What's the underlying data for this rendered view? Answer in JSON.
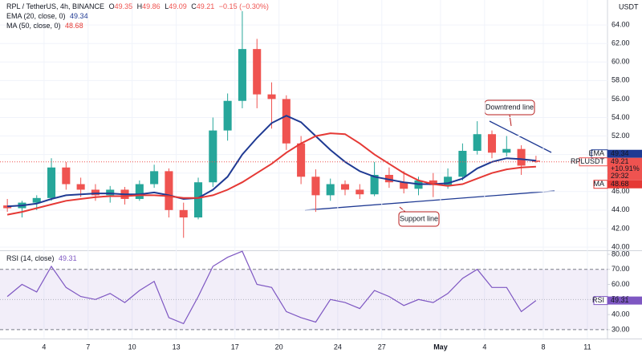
{
  "chart_data": {
    "type": "candlestick",
    "title": "RPL / TetherUS, 4h, BINANCE",
    "ohlc_labels": [
      "O",
      "H",
      "L",
      "C"
    ],
    "change": "−0.15 (−0.30%)",
    "currency": "USDT",
    "up_color": "#26a69a",
    "down_color": "#ef5350",
    "x": [
      0.5,
      1.5,
      2.5,
      3.5,
      4.5,
      5.5,
      6.5,
      7.5,
      8.5,
      9.5,
      10.5,
      11.5,
      12.5,
      13.5,
      14.5,
      15.5,
      16.5,
      17.5,
      18.5,
      19.5,
      20.5,
      21.5,
      22.5,
      23.5,
      24.5,
      25.5,
      26.5,
      27.5,
      28.5,
      29.5,
      30.5,
      31.5,
      32.5,
      33.5,
      34.5,
      35.5,
      36.5
    ],
    "open": [
      44.5,
      44.2,
      44.8,
      45.3,
      48.6,
      46.8,
      46.2,
      45.6,
      46.2,
      45.2,
      46.8,
      48.2,
      44,
      43.2,
      47,
      52.6,
      55.8,
      61.4,
      56.5,
      56,
      51.2,
      47.6,
      45.6,
      46.8,
      46.2,
      45.7,
      47.8,
      47,
      46.3,
      47.2,
      46.7,
      47.6,
      50.4,
      52.2,
      50.2,
      50.6,
      49.35
    ],
    "high": [
      45.2,
      45,
      45.6,
      49.6,
      49.2,
      47.5,
      46.8,
      46.6,
      46.5,
      47.2,
      48.9,
      48.5,
      44.8,
      47.5,
      54,
      56.6,
      65.5,
      62.5,
      57.8,
      56.4,
      52,
      48.4,
      47.4,
      47.2,
      46.8,
      49.2,
      48.6,
      48.2,
      47.6,
      48,
      48.5,
      51.2,
      53.6,
      52.6,
      52,
      51,
      49.86
    ],
    "low": [
      43.8,
      43.2,
      44,
      45,
      46.2,
      45.4,
      45,
      44.8,
      44.6,
      45,
      46.4,
      43.2,
      41,
      43,
      46.5,
      51.5,
      55,
      55,
      52.8,
      50.5,
      46.8,
      43.8,
      45,
      45.6,
      45.2,
      45.5,
      46.4,
      45.8,
      45.6,
      45.4,
      46.3,
      47.2,
      50,
      49.6,
      49.8,
      47.8,
      49.09
    ],
    "close": [
      44.2,
      44.8,
      45.3,
      48.6,
      46.8,
      46.2,
      45.6,
      46.2,
      45.2,
      46.8,
      48.2,
      44,
      43.2,
      47,
      52.6,
      55.8,
      61.4,
      56.5,
      56,
      51.2,
      47.6,
      45.6,
      46.8,
      46.2,
      45.7,
      47.8,
      47,
      46.3,
      47.2,
      46.7,
      47.6,
      50.4,
      52.2,
      50.2,
      50.6,
      48.8,
      49.21
    ],
    "series": [
      {
        "name": "EMA (20, close, 0)",
        "short": "EMA",
        "color": "#1f3a93",
        "values": [
          44.4,
          44.5,
          44.7,
          45.2,
          45.6,
          45.7,
          45.8,
          45.8,
          45.7,
          45.7,
          45.9,
          45.6,
          45.2,
          45.3,
          46.2,
          47.6,
          50,
          51.8,
          53.4,
          54.2,
          53.5,
          52,
          50.5,
          49.2,
          48.2,
          47.6,
          47.3,
          47,
          46.8,
          46.8,
          46.9,
          47.4,
          48.5,
          49.2,
          49.6,
          49.5,
          49.34
        ]
      },
      {
        "name": "MA (50, close, 0)",
        "short": "MA",
        "color": "#e53935",
        "values": [
          43.5,
          43.8,
          44.2,
          44.6,
          45,
          45.2,
          45.4,
          45.5,
          45.5,
          45.6,
          45.6,
          45.5,
          45.3,
          45.3,
          45.6,
          46.2,
          47,
          48,
          49,
          50.2,
          51.2,
          52,
          52.3,
          52.2,
          51.2,
          50,
          49,
          48,
          47.2,
          46.8,
          46.6,
          46.8,
          47.4,
          48,
          48.4,
          48.6,
          48.68
        ]
      }
    ],
    "price_badge": {
      "symbol": "RPLUSDT",
      "change": "+10.91%",
      "countdown": "29:32"
    },
    "xlim": [
      0,
      41.37
    ],
    "xticks": [
      {
        "value": 3,
        "label": "4"
      },
      {
        "value": 6,
        "label": "7"
      },
      {
        "value": 9,
        "label": "10"
      },
      {
        "value": 12,
        "label": "13"
      },
      {
        "value": 16,
        "label": "17"
      },
      {
        "value": 19,
        "label": "20"
      },
      {
        "value": 23,
        "label": "24"
      },
      {
        "value": 26,
        "label": "27"
      },
      {
        "value": 30,
        "label": "May"
      },
      {
        "value": 33,
        "label": "4"
      },
      {
        "value": 37,
        "label": "8"
      },
      {
        "value": 40,
        "label": "11"
      }
    ],
    "ylim": [
      39.65,
      66.7
    ],
    "yticks": [
      {
        "value": 40,
        "label": "40.00"
      },
      {
        "value": 42,
        "label": "42.00"
      },
      {
        "value": 44,
        "label": "44.00"
      },
      {
        "value": 46,
        "label": "46.00"
      },
      {
        "value": 48,
        "label": "48.00"
      },
      {
        "value": 50,
        "label": "50.00"
      },
      {
        "value": 52,
        "label": "52.00"
      },
      {
        "value": 54,
        "label": "54.00"
      },
      {
        "value": 56,
        "label": "56.00"
      },
      {
        "value": 58,
        "label": "58.00"
      },
      {
        "value": 60,
        "label": "60.00"
      },
      {
        "value": 62,
        "label": "62.00"
      },
      {
        "value": 64,
        "label": "64.00"
      }
    ],
    "grid": true,
    "annotations": [
      "Downtrend line",
      "Support line"
    ],
    "rsi": {
      "name": "RSI (14, close)",
      "short": "RSI",
      "color": "#7e57c2",
      "values": [
        52,
        60,
        55,
        72,
        58,
        52,
        50,
        54,
        48,
        56,
        62,
        38,
        34,
        52,
        72,
        78,
        82,
        60,
        58,
        42,
        38,
        35,
        50,
        48,
        44,
        56,
        52,
        46,
        50,
        48,
        54,
        64,
        70,
        58,
        58,
        42,
        49.31
      ],
      "band": [
        30,
        70
      ],
      "mid": 50,
      "ylim": [
        24.1,
        82.1
      ],
      "yticks": [
        {
          "value": 30,
          "label": "30.00"
        },
        {
          "value": 40,
          "label": "40.00"
        },
        {
          "value": 50,
          "label": "50.00"
        },
        {
          "value": 60,
          "label": "60.00"
        },
        {
          "value": 70,
          "label": "70.00"
        },
        {
          "value": 80,
          "label": "80.00"
        }
      ]
    }
  }
}
